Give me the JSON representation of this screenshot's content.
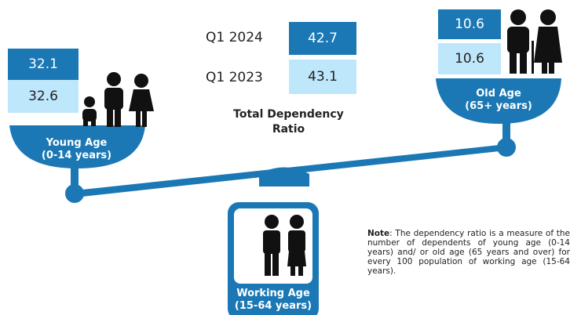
{
  "total": {
    "rows": [
      {
        "label": "Q1 2024",
        "value": "42.7"
      },
      {
        "label": "Q1 2023",
        "value": "43.1"
      }
    ],
    "caption": [
      "Total Dependency",
      "Ratio"
    ]
  },
  "young": {
    "values": [
      "32.1",
      "32.6"
    ],
    "label": "Young Age",
    "range": "(0-14 years)"
  },
  "old": {
    "values": [
      "10.6",
      "10.6"
    ],
    "label": "Old Age",
    "range": "(65+ years)"
  },
  "working": {
    "label": "Working Age",
    "range": "(15-64 years)"
  },
  "note": {
    "label": "Note",
    "text": ": The dependency ratio is a measure of the number of dependents of young age (0-14 years) and/ or old age (65 years and over) for every 100 population of working age (15-64 years)."
  }
}
